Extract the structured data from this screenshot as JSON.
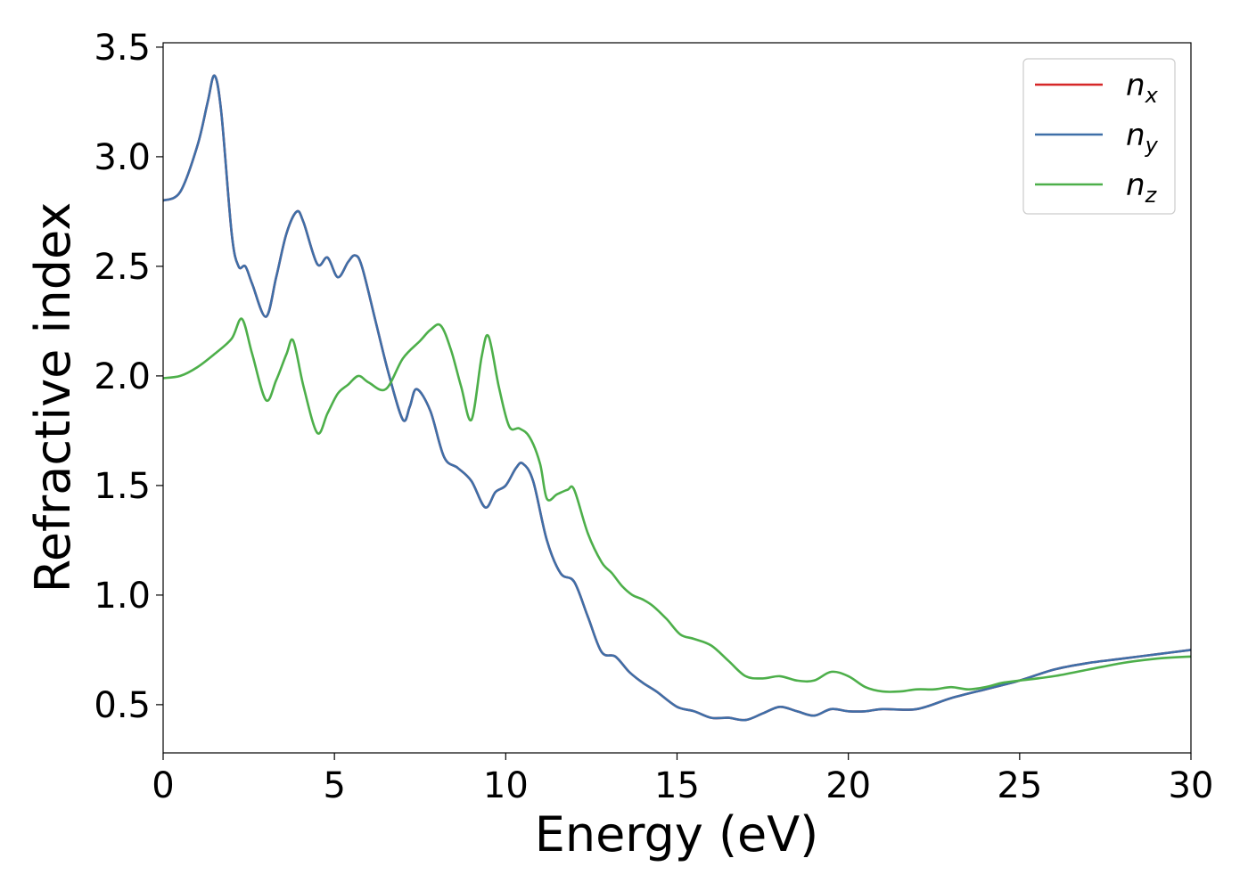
{
  "chart_data": {
    "type": "line",
    "title": "",
    "xlabel": "Energy (eV)",
    "ylabel": "Refractive index",
    "xlim": [
      0,
      30
    ],
    "ylim": [
      0.28,
      3.52
    ],
    "xticks": [
      0,
      5,
      10,
      15,
      20,
      25,
      30
    ],
    "xtick_labels": [
      "0",
      "5",
      "10",
      "15",
      "20",
      "25",
      "30"
    ],
    "yticks": [
      0.5,
      1.0,
      1.5,
      2.0,
      2.5,
      3.0,
      3.5
    ],
    "ytick_labels": [
      "0.5",
      "1.0",
      "1.5",
      "2.0",
      "2.5",
      "3.0",
      "3.5"
    ],
    "grid": false,
    "legend_position": "top-right",
    "series": [
      {
        "name": "n",
        "subscript": "x",
        "color": "#d62728",
        "x": [
          0,
          0.5,
          1.0,
          1.3,
          1.5,
          1.7,
          2.0,
          2.2,
          2.4,
          2.6,
          3.0,
          3.3,
          3.6,
          3.9,
          4.1,
          4.5,
          4.8,
          5.1,
          5.4,
          5.6,
          5.8,
          6.2,
          6.6,
          7.0,
          7.2,
          7.4,
          7.8,
          8.2,
          8.6,
          9.0,
          9.4,
          9.7,
          10.0,
          10.3,
          10.5,
          10.8,
          11.2,
          11.6,
          12.0,
          12.4,
          12.8,
          13.2,
          13.6,
          14.0,
          14.4,
          15.0,
          15.5,
          16.0,
          16.5,
          17.0,
          17.5,
          18.0,
          18.5,
          19.0,
          19.5,
          20.0,
          20.5,
          21.0,
          22.0,
          23.0,
          24.0,
          25.0,
          26.0,
          27.0,
          28.0,
          29.0,
          30.0
        ],
        "y": [
          2.8,
          2.84,
          3.05,
          3.25,
          3.37,
          3.2,
          2.65,
          2.5,
          2.5,
          2.42,
          2.27,
          2.45,
          2.65,
          2.75,
          2.7,
          2.51,
          2.54,
          2.45,
          2.52,
          2.55,
          2.5,
          2.25,
          2.0,
          1.8,
          1.86,
          1.94,
          1.84,
          1.63,
          1.58,
          1.52,
          1.4,
          1.47,
          1.5,
          1.58,
          1.6,
          1.52,
          1.25,
          1.1,
          1.06,
          0.9,
          0.74,
          0.72,
          0.65,
          0.6,
          0.56,
          0.49,
          0.47,
          0.44,
          0.44,
          0.43,
          0.46,
          0.49,
          0.47,
          0.45,
          0.48,
          0.47,
          0.47,
          0.48,
          0.48,
          0.53,
          0.57,
          0.61,
          0.66,
          0.69,
          0.71,
          0.73,
          0.75
        ]
      },
      {
        "name": "n",
        "subscript": "y",
        "color": "#3e6fa8",
        "x": [
          0,
          0.5,
          1.0,
          1.3,
          1.5,
          1.7,
          2.0,
          2.2,
          2.4,
          2.6,
          3.0,
          3.3,
          3.6,
          3.9,
          4.1,
          4.5,
          4.8,
          5.1,
          5.4,
          5.6,
          5.8,
          6.2,
          6.6,
          7.0,
          7.2,
          7.4,
          7.8,
          8.2,
          8.6,
          9.0,
          9.4,
          9.7,
          10.0,
          10.3,
          10.5,
          10.8,
          11.2,
          11.6,
          12.0,
          12.4,
          12.8,
          13.2,
          13.6,
          14.0,
          14.4,
          15.0,
          15.5,
          16.0,
          16.5,
          17.0,
          17.5,
          18.0,
          18.5,
          19.0,
          19.5,
          20.0,
          20.5,
          21.0,
          22.0,
          23.0,
          24.0,
          25.0,
          26.0,
          27.0,
          28.0,
          29.0,
          30.0
        ],
        "y": [
          2.8,
          2.84,
          3.05,
          3.25,
          3.37,
          3.2,
          2.65,
          2.5,
          2.5,
          2.42,
          2.27,
          2.45,
          2.65,
          2.75,
          2.7,
          2.51,
          2.54,
          2.45,
          2.52,
          2.55,
          2.5,
          2.25,
          2.0,
          1.8,
          1.86,
          1.94,
          1.84,
          1.63,
          1.58,
          1.52,
          1.4,
          1.47,
          1.5,
          1.58,
          1.6,
          1.52,
          1.25,
          1.1,
          1.06,
          0.9,
          0.74,
          0.72,
          0.65,
          0.6,
          0.56,
          0.49,
          0.47,
          0.44,
          0.44,
          0.43,
          0.46,
          0.49,
          0.47,
          0.45,
          0.48,
          0.47,
          0.47,
          0.48,
          0.48,
          0.53,
          0.57,
          0.61,
          0.66,
          0.69,
          0.71,
          0.73,
          0.75
        ]
      },
      {
        "name": "n",
        "subscript": "z",
        "color": "#4daf4a",
        "x": [
          0,
          0.5,
          1.0,
          1.5,
          2.0,
          2.3,
          2.6,
          3.0,
          3.3,
          3.6,
          3.8,
          4.1,
          4.5,
          4.8,
          5.1,
          5.4,
          5.7,
          6.0,
          6.5,
          7.0,
          7.5,
          7.8,
          8.1,
          8.4,
          8.7,
          9.0,
          9.3,
          9.5,
          9.8,
          10.1,
          10.4,
          10.7,
          11.0,
          11.2,
          11.5,
          11.8,
          12.0,
          12.4,
          12.8,
          13.1,
          13.4,
          13.7,
          14.0,
          14.3,
          14.7,
          15.1,
          15.5,
          16.0,
          16.5,
          17.0,
          17.5,
          18.0,
          18.5,
          19.0,
          19.5,
          20.0,
          20.5,
          21.0,
          21.5,
          22.0,
          22.5,
          23.0,
          23.5,
          24.0,
          24.5,
          25.0,
          26.0,
          27.0,
          28.0,
          29.0,
          30.0
        ],
        "y": [
          1.99,
          2.0,
          2.04,
          2.1,
          2.17,
          2.26,
          2.1,
          1.89,
          1.98,
          2.1,
          2.16,
          1.95,
          1.74,
          1.83,
          1.92,
          1.96,
          2.0,
          1.97,
          1.94,
          2.08,
          2.16,
          2.21,
          2.23,
          2.12,
          1.95,
          1.8,
          2.09,
          2.18,
          1.95,
          1.77,
          1.76,
          1.72,
          1.6,
          1.44,
          1.46,
          1.48,
          1.48,
          1.28,
          1.15,
          1.1,
          1.04,
          1.0,
          0.98,
          0.95,
          0.89,
          0.82,
          0.8,
          0.77,
          0.7,
          0.63,
          0.62,
          0.63,
          0.61,
          0.61,
          0.65,
          0.63,
          0.58,
          0.56,
          0.56,
          0.57,
          0.57,
          0.58,
          0.57,
          0.58,
          0.6,
          0.61,
          0.63,
          0.66,
          0.69,
          0.71,
          0.72
        ]
      }
    ]
  }
}
